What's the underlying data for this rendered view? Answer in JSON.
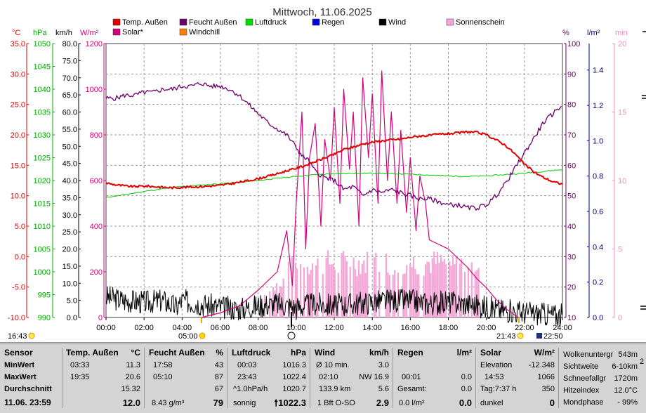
{
  "title": "Mittwoch, 11.06.2025",
  "colors": {
    "temp": "#e00000",
    "humidity": "#6a006a",
    "pressure": "#00cc00",
    "rain": "#0000dd",
    "wind": "#000000",
    "sunshine": "#f4a6d7",
    "solar": "#d4007a",
    "windchill": "#ff8000",
    "axis_temp": "#e00000",
    "axis_hpa": "#00aa00",
    "axis_wind": "#000000",
    "axis_solar": "#d4007a",
    "axis_hum": "#6a006a",
    "axis_rain": "#000080",
    "axis_min": "#f08cc0"
  },
  "axis_units": {
    "temp": "°C",
    "hpa": "hPa",
    "wind": "km/h",
    "solar": "W/m²",
    "hum": "%",
    "rain": "l/m²",
    "min": "min"
  },
  "legend": [
    {
      "label": "Temp. Außen",
      "color": "#e00000"
    },
    {
      "label": "Feucht Außen",
      "color": "#6a006a"
    },
    {
      "label": "Luftdruck",
      "color": "#00dd00"
    },
    {
      "label": "Regen",
      "color": "#0000dd"
    },
    {
      "label": "Wind",
      "color": "#000000"
    },
    {
      "label": "Sonnenschein",
      "color": "#f4a6d7"
    },
    {
      "label": "Solar*",
      "color": "#d4007a"
    },
    {
      "label": "Windchill",
      "color": "#ff8000"
    }
  ],
  "chart_data": {
    "type": "line",
    "title": "Mittwoch, 11.06.2025",
    "x_ticks": [
      "00:00",
      "02:00",
      "04:00",
      "06:00",
      "08:00",
      "10:00",
      "12:00",
      "14:00",
      "16:00",
      "18:00",
      "20:00",
      "22:00",
      "24:00"
    ],
    "axes": {
      "temp": {
        "ticks": [
          "35.0",
          "30.0",
          "25.0",
          "20.0",
          "15.0",
          "10.0",
          "5.0",
          "0.0",
          "-5.0",
          "-10.0"
        ],
        "range": [
          -10,
          35
        ]
      },
      "hpa": {
        "ticks": [
          "1050",
          "1045",
          "1040",
          "1035",
          "1030",
          "1025",
          "1020",
          "1015",
          "1010",
          "1005",
          "1000",
          "995",
          "990"
        ],
        "range": [
          990,
          1050
        ]
      },
      "wind": {
        "ticks": [
          "80.0",
          "75.0",
          "70.0",
          "65.0",
          "60.0",
          "55.0",
          "50.0",
          "45.0",
          "40.0",
          "35.0",
          "30.0",
          "25.0",
          "20.0",
          "15.0",
          "10.0",
          "5.0",
          "0.0"
        ],
        "range": [
          0,
          80
        ]
      },
      "solar": {
        "ticks": [
          "1200",
          "1000",
          "800",
          "600",
          "400",
          "200",
          "0"
        ],
        "range": [
          0,
          1200
        ]
      },
      "hum": {
        "ticks": [
          "100",
          "90",
          "80",
          "70",
          "60",
          "50",
          "40",
          "30",
          "20",
          "10"
        ],
        "range": [
          10,
          100
        ]
      },
      "rain": {
        "ticks": [
          "1.4",
          "1.2",
          "1.0",
          "0.8",
          "0.6",
          "0.4",
          "0.2",
          "0.0"
        ],
        "range": [
          0,
          1.55
        ]
      },
      "min": {
        "ticks": [
          "20",
          "15",
          "10",
          "5",
          "0"
        ],
        "range": [
          0,
          20
        ]
      }
    },
    "series": [
      {
        "name": "Temp. Außen",
        "axis": "temp",
        "unit": "°C",
        "x": [
          0,
          0.5,
          1,
          1.5,
          2,
          2.5,
          3,
          3.55,
          4,
          5,
          6,
          7,
          8,
          9,
          9.5,
          10,
          10.5,
          11,
          11.5,
          12,
          12.5,
          13,
          13.5,
          14,
          14.5,
          15,
          15.5,
          16,
          16.5,
          17,
          17.5,
          18,
          18.5,
          19,
          19.5,
          20,
          20.5,
          21,
          21.5,
          22,
          22.5,
          23,
          23.5,
          24
        ],
        "y": [
          12.1,
          11.8,
          11.6,
          11.5,
          11.6,
          11.5,
          11.4,
          11.3,
          11.4,
          11.5,
          11.7,
          12.2,
          12.8,
          13.6,
          14.1,
          14.5,
          15,
          15.6,
          16.2,
          16.8,
          17.6,
          18,
          18.5,
          18.8,
          19,
          19.2,
          19.3,
          19.6,
          19.8,
          19.9,
          20.1,
          20.2,
          20.3,
          20.5,
          20.4,
          20,
          19.2,
          18.3,
          16.9,
          15.2,
          13.9,
          13,
          12.3,
          11.9
        ]
      },
      {
        "name": "Feucht Außen",
        "axis": "hum",
        "unit": "%",
        "x": [
          0,
          0.5,
          1,
          1.5,
          2,
          2.5,
          3,
          3.5,
          4,
          4.5,
          5,
          5.5,
          6,
          6.5,
          7,
          7.5,
          8,
          8.5,
          9,
          9.5,
          10,
          10.3,
          10.6,
          11,
          11.5,
          12,
          12.5,
          13,
          13.5,
          14,
          14.5,
          15,
          15.5,
          16,
          16.5,
          17,
          17.5,
          18,
          18.5,
          19,
          19.5,
          20,
          20.5,
          21,
          21.5,
          22,
          22.5,
          23,
          23.5,
          24
        ],
        "y": [
          82,
          82,
          83,
          83,
          84,
          84,
          85,
          85,
          86,
          86,
          87,
          86,
          86,
          85,
          83,
          80,
          77,
          74,
          72,
          70,
          66,
          63,
          62,
          58,
          56,
          55,
          52,
          53,
          50,
          52,
          51,
          52,
          51,
          50,
          49,
          49,
          48,
          47,
          47,
          46,
          46,
          47,
          50,
          54,
          59,
          64,
          69,
          74,
          77,
          80
        ]
      },
      {
        "name": "Luftdruck",
        "axis": "hpa",
        "unit": "hPa",
        "x": [
          0,
          1,
          2,
          3,
          4,
          5,
          6,
          7,
          8,
          9,
          10,
          11,
          12,
          13,
          14,
          15,
          16,
          17,
          18,
          19,
          20,
          21,
          22,
          23,
          24
        ],
        "y": [
          1016.3,
          1016.9,
          1017.6,
          1018.2,
          1018.7,
          1019.0,
          1019.3,
          1019.6,
          1020.0,
          1020.5,
          1020.9,
          1021.3,
          1021.5,
          1021.6,
          1021.6,
          1021.5,
          1021.4,
          1021.2,
          1021.0,
          1020.9,
          1021.0,
          1021.3,
          1021.6,
          1022.0,
          1022.4
        ]
      },
      {
        "name": "Solar*",
        "axis": "solar",
        "unit": "W/m²",
        "x": [
          5,
          6,
          7,
          8,
          8.5,
          9,
          9.5,
          9.8,
          10,
          10.3,
          10.5,
          10.7,
          11,
          11.3,
          11.5,
          11.8,
          12,
          12.3,
          12.5,
          12.8,
          13,
          13.3,
          13.5,
          13.8,
          14,
          14.3,
          14.5,
          14.8,
          15,
          15.3,
          15.5,
          15.8,
          16,
          16.3,
          16.5,
          16.8,
          17,
          17.5,
          18,
          18.5,
          19,
          19.5,
          20,
          20.5,
          21,
          21.5,
          21.7
        ],
        "y": [
          0,
          20,
          50,
          120,
          160,
          200,
          380,
          140,
          500,
          900,
          300,
          700,
          850,
          400,
          780,
          600,
          920,
          500,
          1000,
          650,
          900,
          400,
          1050,
          700,
          980,
          500,
          1080,
          600,
          900,
          500,
          820,
          460,
          700,
          380,
          620,
          500,
          340,
          320,
          300,
          260,
          220,
          170,
          130,
          80,
          40,
          10,
          0
        ]
      },
      {
        "name": "Wind",
        "axis": "wind",
        "unit": "km/h",
        "x": [
          0,
          1,
          2,
          3,
          3.7,
          4,
          5,
          6,
          7,
          8,
          9,
          10,
          11,
          12,
          13,
          14,
          15,
          16,
          17,
          18,
          19,
          20,
          21,
          22,
          23,
          24
        ],
        "y": [
          6,
          5,
          4.5,
          5,
          3,
          5,
          4,
          3,
          2.5,
          3.5,
          4,
          3,
          4,
          3.5,
          4,
          4.5,
          5,
          5,
          4,
          4.5,
          4,
          3,
          2,
          1.5,
          1,
          0.5
        ],
        "max": 16.9
      },
      {
        "name": "Sonnenschein",
        "axis": "min",
        "unit": "min",
        "x": [
          8.3,
          9,
          10,
          11,
          12,
          13,
          14,
          15,
          16,
          17,
          18,
          19,
          19.6
        ],
        "y": [
          2,
          3,
          5,
          5,
          5,
          5,
          5,
          5,
          5,
          5,
          5,
          5,
          5
        ]
      }
    ]
  },
  "time_markers": [
    {
      "label": "16:43",
      "icon": "moon-icon"
    },
    {
      "label": "05:00",
      "icon": "sun-icon"
    },
    {
      "label": "21:43",
      "icon": "moon-icon"
    },
    {
      "label": "22:50",
      "icon": "moon-icon"
    }
  ],
  "panel": {
    "sensor": {
      "header": "Sensor",
      "rows": [
        "MinWert",
        "MaxWert",
        "Durchschnitt"
      ],
      "date": "11.06. 23:59"
    },
    "temp": {
      "header": "Temp. Außen",
      "unit": "°C",
      "min_time": "03:33",
      "min": "11.3",
      "max_time": "19:35",
      "max": "20.6",
      "avg": "15.32",
      "current": "12.0"
    },
    "hum": {
      "header": "Feucht Außen",
      "unit": "%",
      "min_time": "17:58",
      "min": "43",
      "max_time": "05:10",
      "max": "87",
      "avg": "67",
      "abs": "8.43 g/m³",
      "current": "79"
    },
    "pres": {
      "header": "Luftdruck",
      "unit": "hPa",
      "min_time": "00:03",
      "min": "1016.3",
      "max_time": "23:43",
      "max": "1022.4",
      "trend": "^1.0hPa/h",
      "avg": "1020.7",
      "forecast": "sonnig",
      "current": "1022.3",
      "arrow": "🠕"
    },
    "wind": {
      "header": "Wind",
      "unit": "km/h",
      "avg_label": "Ø 10 min.",
      "avg": "3.0",
      "gust_time": "02:10",
      "gust": "NW 16.9",
      "run": "133.9 km",
      "run_value": "5.6",
      "beaufort": "1 Bft O-SO",
      "current": "2.9"
    },
    "rain": {
      "header": "Regen",
      "unit": "l/m²",
      "last_time": "00:01",
      "last": "0.0",
      "total_label": "Gesamt:",
      "total": "0.0",
      "rate": "0.0 l/m²",
      "current": "0.0"
    },
    "solar": {
      "header": "Solar",
      "unit": "W/m²",
      "elev_label": "Elevation",
      "elev": "-12.348",
      "max_time": "14:53",
      "max": "1066",
      "day": "Tag:7:37 h",
      "day_value": "350",
      "state": "dunkel",
      "current": "0"
    },
    "extra": [
      {
        "label": "Wolkenuntergr",
        "value": "543m"
      },
      {
        "label": "Sichtweite",
        "value": "6-10km"
      },
      {
        "label": "Schneefallgr",
        "value": "1720m"
      },
      {
        "label": "Hitzeindex",
        "value": "12.0°C"
      },
      {
        "label": "Mondphase",
        "value": "- 99%"
      }
    ],
    "edge": "2"
  }
}
